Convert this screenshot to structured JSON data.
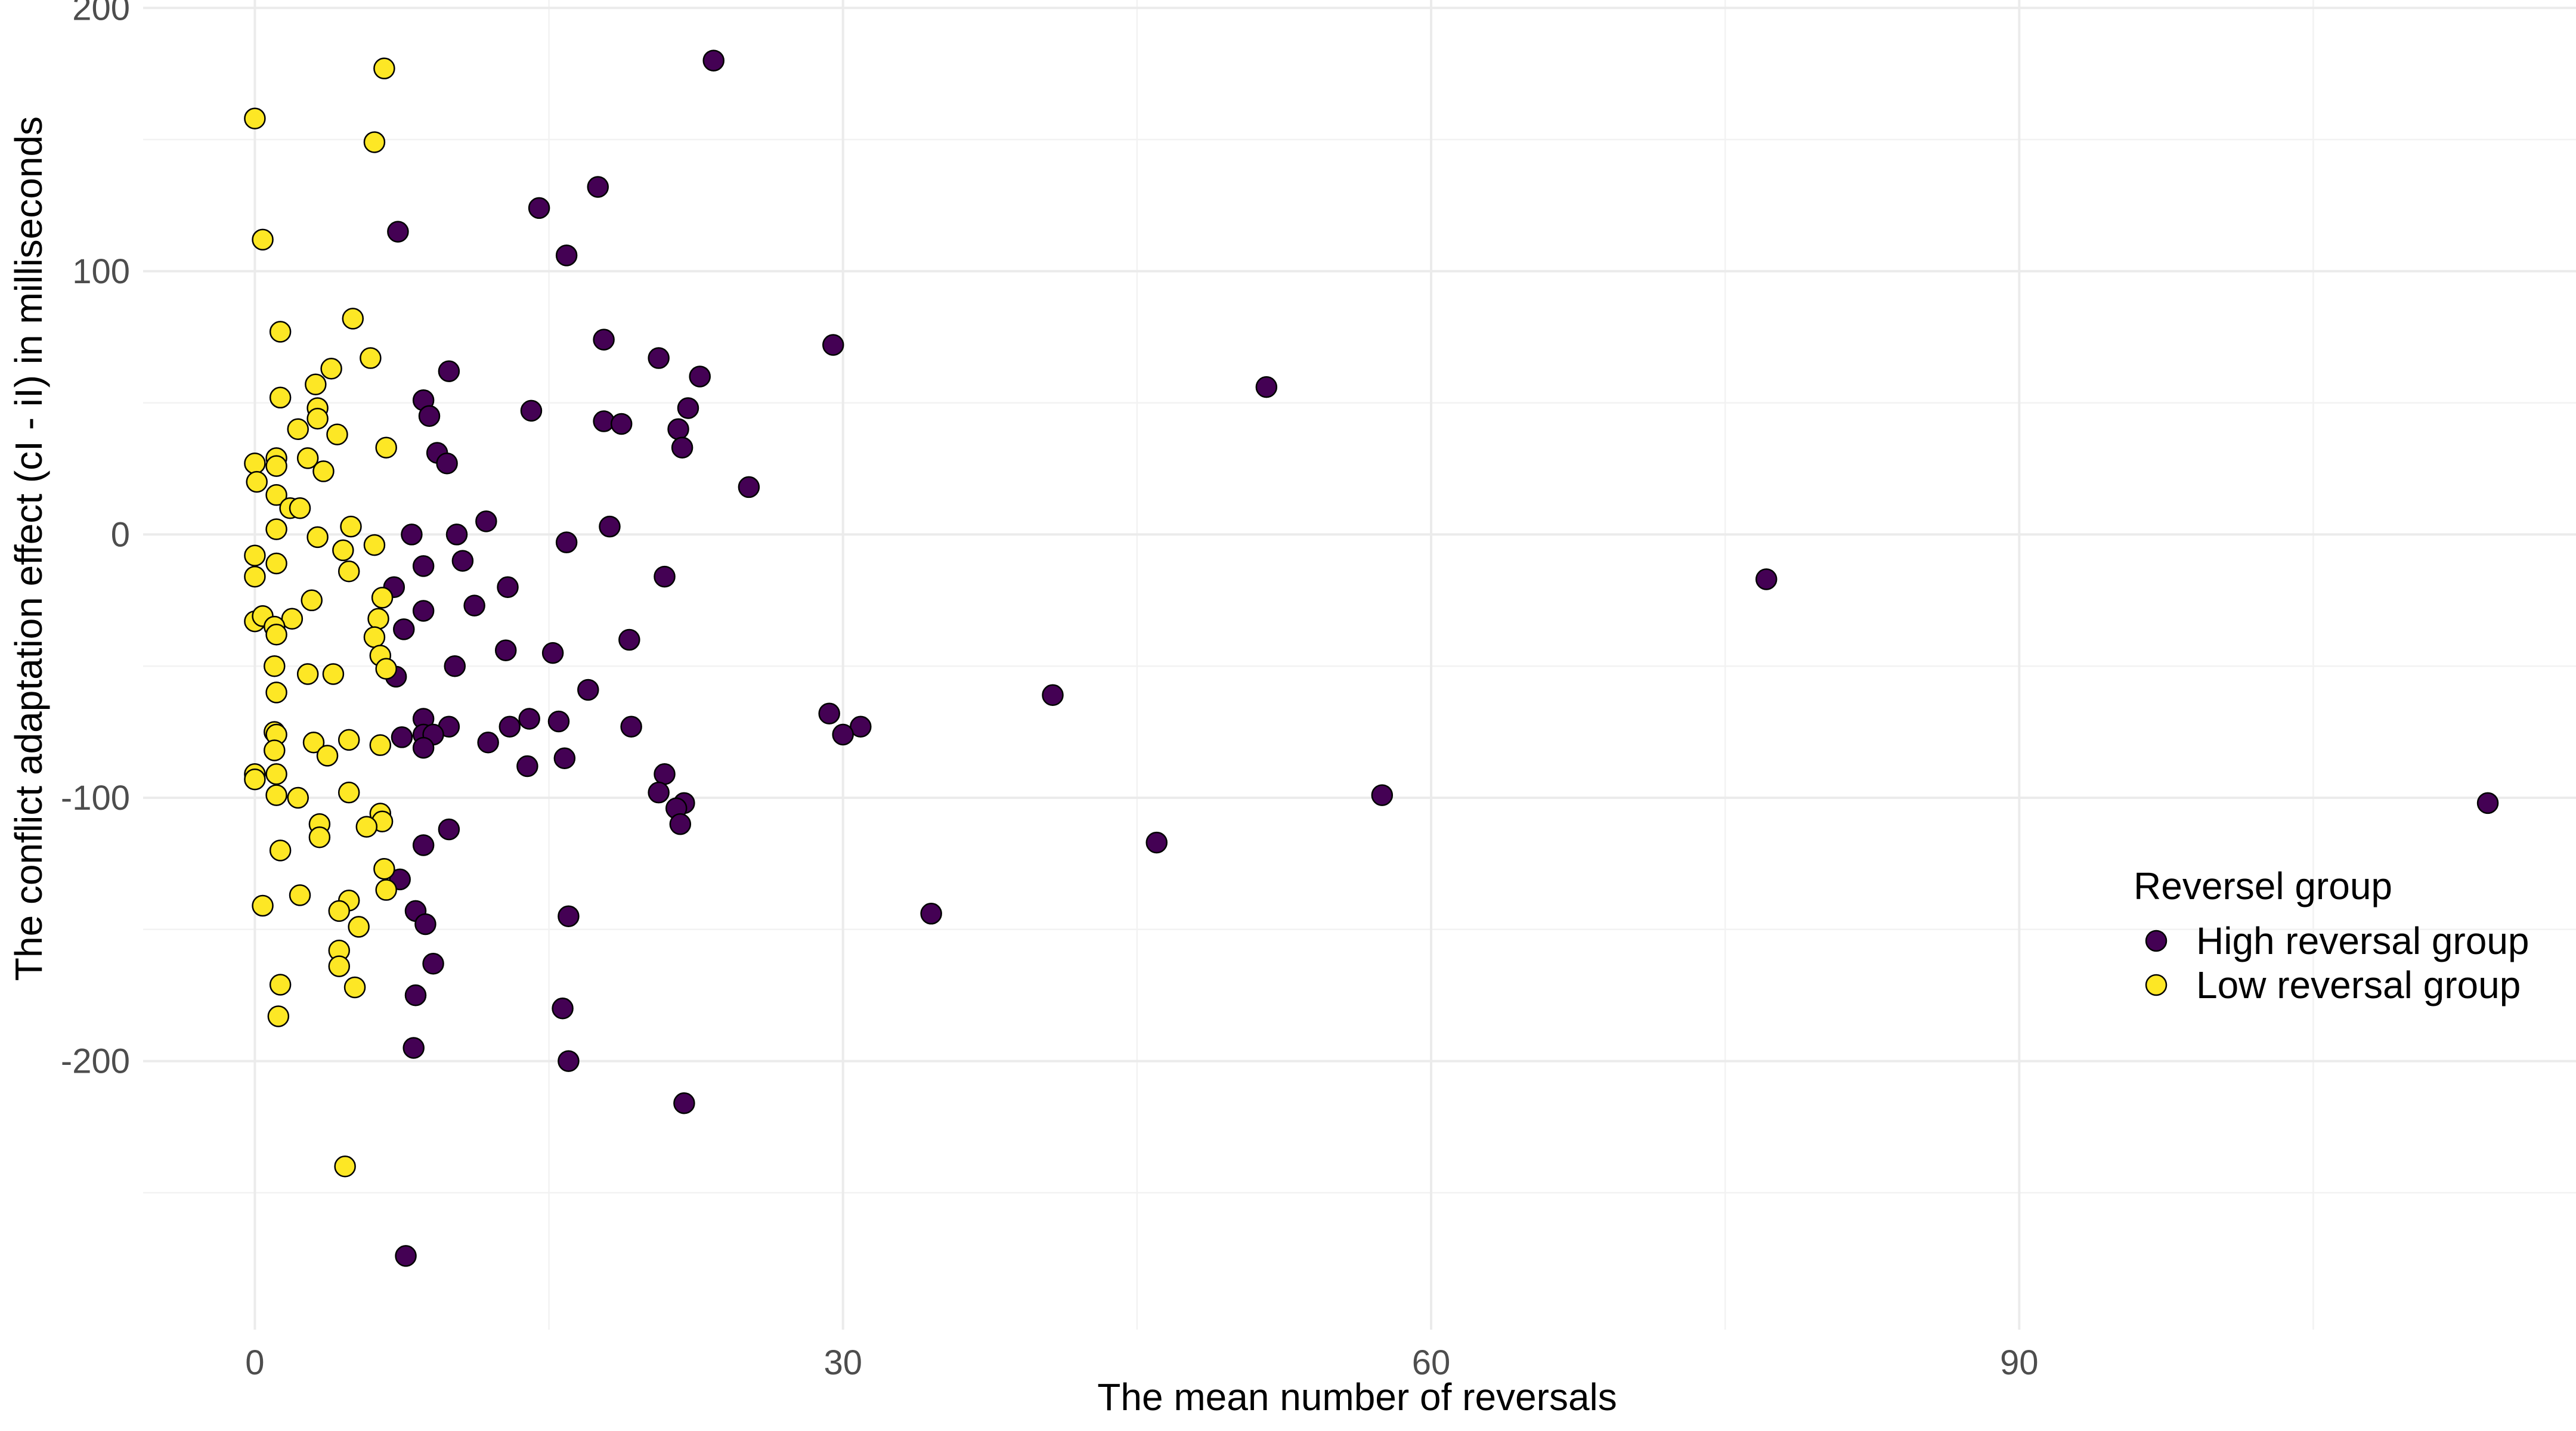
{
  "chart_data": {
    "type": "scatter",
    "xlabel": "The mean number of reversals",
    "ylabel": "The conflict adaptation effect (cI - iI) in milliseconds",
    "xlim": [
      -5.7,
      118.4
    ],
    "ylim": [
      -302,
      203
    ],
    "x_ticks": [
      0,
      30,
      60,
      90
    ],
    "y_ticks": [
      200,
      100,
      0,
      -100,
      -200
    ],
    "x_tick_labels": [
      "0",
      "30",
      "60",
      "90"
    ],
    "y_tick_labels": [
      "200",
      "100",
      "0",
      "-100",
      "-200"
    ],
    "grid": true,
    "legend": {
      "title": "Reversel group",
      "placement": "right",
      "entries": [
        "High reversal group",
        "Low reversal group"
      ]
    },
    "colors": {
      "High reversal group": "#440154",
      "Low reversal group": "#fde725"
    },
    "series": [
      {
        "name": "High reversal group",
        "points": [
          [
            23.4,
            180
          ],
          [
            17.5,
            132
          ],
          [
            14.5,
            124
          ],
          [
            7.3,
            115
          ],
          [
            15.9,
            106
          ],
          [
            29.5,
            72
          ],
          [
            17.8,
            74
          ],
          [
            20.6,
            67
          ],
          [
            22.7,
            60
          ],
          [
            9.9,
            62
          ],
          [
            51.6,
            56
          ],
          [
            8.6,
            51
          ],
          [
            14.1,
            47
          ],
          [
            22.1,
            48
          ],
          [
            8.9,
            45
          ],
          [
            17.8,
            43
          ],
          [
            18.7,
            42
          ],
          [
            21.6,
            40
          ],
          [
            21.8,
            33
          ],
          [
            9.3,
            31
          ],
          [
            9.8,
            27
          ],
          [
            25.2,
            18
          ],
          [
            11.8,
            5
          ],
          [
            18.1,
            3
          ],
          [
            8.0,
            0
          ],
          [
            10.3,
            0
          ],
          [
            15.9,
            -3
          ],
          [
            10.6,
            -10
          ],
          [
            8.6,
            -12
          ],
          [
            20.9,
            -16
          ],
          [
            77.1,
            -17
          ],
          [
            7.1,
            -20
          ],
          [
            12.9,
            -20
          ],
          [
            11.2,
            -27
          ],
          [
            8.6,
            -29
          ],
          [
            7.6,
            -36
          ],
          [
            19.1,
            -40
          ],
          [
            12.8,
            -44
          ],
          [
            15.2,
            -45
          ],
          [
            10.2,
            -50
          ],
          [
            7.2,
            -54
          ],
          [
            17.0,
            -59
          ],
          [
            40.7,
            -61
          ],
          [
            29.3,
            -68
          ],
          [
            14.0,
            -70
          ],
          [
            8.6,
            -70
          ],
          [
            15.5,
            -71
          ],
          [
            19.2,
            -73
          ],
          [
            30.9,
            -73
          ],
          [
            9.9,
            -73
          ],
          [
            13.0,
            -73
          ],
          [
            30.0,
            -76
          ],
          [
            8.6,
            -76
          ],
          [
            9.1,
            -76
          ],
          [
            7.5,
            -77
          ],
          [
            11.9,
            -79
          ],
          [
            8.6,
            -81
          ],
          [
            15.8,
            -85
          ],
          [
            13.9,
            -88
          ],
          [
            20.9,
            -91
          ],
          [
            20.6,
            -98
          ],
          [
            57.5,
            -99
          ],
          [
            21.9,
            -102
          ],
          [
            113.9,
            -102
          ],
          [
            21.5,
            -104
          ],
          [
            21.7,
            -110
          ],
          [
            9.9,
            -112
          ],
          [
            46.0,
            -117
          ],
          [
            8.6,
            -118
          ],
          [
            7.4,
            -131
          ],
          [
            8.2,
            -143
          ],
          [
            34.5,
            -144
          ],
          [
            16.0,
            -145
          ],
          [
            8.7,
            -148
          ],
          [
            9.1,
            -163
          ],
          [
            8.2,
            -175
          ],
          [
            15.7,
            -180
          ],
          [
            8.1,
            -195
          ],
          [
            16.0,
            -200
          ],
          [
            21.9,
            -216
          ],
          [
            7.7,
            -274
          ]
        ]
      },
      {
        "name": "Low reversal group",
        "points": [
          [
            6.6,
            177
          ],
          [
            0.0,
            158
          ],
          [
            6.1,
            149
          ],
          [
            0.4,
            112
          ],
          [
            5.0,
            82
          ],
          [
            1.3,
            77
          ],
          [
            5.9,
            67
          ],
          [
            3.9,
            63
          ],
          [
            3.1,
            57
          ],
          [
            1.3,
            52
          ],
          [
            3.2,
            48
          ],
          [
            3.2,
            44
          ],
          [
            2.2,
            40
          ],
          [
            4.2,
            38
          ],
          [
            6.7,
            33
          ],
          [
            1.1,
            29
          ],
          [
            2.7,
            29
          ],
          [
            0.0,
            27
          ],
          [
            1.1,
            26
          ],
          [
            3.5,
            24
          ],
          [
            0.1,
            20
          ],
          [
            1.1,
            15
          ],
          [
            1.8,
            10
          ],
          [
            2.3,
            10
          ],
          [
            4.9,
            3
          ],
          [
            1.1,
            2
          ],
          [
            3.2,
            -1
          ],
          [
            6.1,
            -4
          ],
          [
            4.5,
            -6
          ],
          [
            0.0,
            -8
          ],
          [
            1.1,
            -11
          ],
          [
            4.8,
            -14
          ],
          [
            0.0,
            -16
          ],
          [
            6.5,
            -24
          ],
          [
            2.9,
            -25
          ],
          [
            0.0,
            -33
          ],
          [
            1.9,
            -32
          ],
          [
            0.4,
            -31
          ],
          [
            6.3,
            -32
          ],
          [
            1.0,
            -35
          ],
          [
            1.1,
            -38
          ],
          [
            6.1,
            -39
          ],
          [
            6.4,
            -46
          ],
          [
            1.0,
            -50
          ],
          [
            6.7,
            -51
          ],
          [
            4.0,
            -53
          ],
          [
            2.7,
            -53
          ],
          [
            1.1,
            -60
          ],
          [
            1.0,
            -75
          ],
          [
            1.1,
            -76
          ],
          [
            4.8,
            -78
          ],
          [
            3.0,
            -79
          ],
          [
            6.4,
            -80
          ],
          [
            1.0,
            -82
          ],
          [
            3.7,
            -84
          ],
          [
            0.0,
            -91
          ],
          [
            1.1,
            -91
          ],
          [
            0.0,
            -93
          ],
          [
            4.8,
            -98
          ],
          [
            1.1,
            -99
          ],
          [
            2.2,
            -100
          ],
          [
            6.4,
            -106
          ],
          [
            6.5,
            -109
          ],
          [
            3.3,
            -110
          ],
          [
            5.7,
            -111
          ],
          [
            3.3,
            -115
          ],
          [
            1.3,
            -120
          ],
          [
            6.6,
            -127
          ],
          [
            6.7,
            -135
          ],
          [
            2.3,
            -137
          ],
          [
            4.8,
            -139
          ],
          [
            0.4,
            -141
          ],
          [
            4.3,
            -143
          ],
          [
            5.3,
            -149
          ],
          [
            4.3,
            -158
          ],
          [
            4.3,
            -164
          ],
          [
            1.3,
            -171
          ],
          [
            5.1,
            -172
          ],
          [
            1.2,
            -183
          ],
          [
            4.6,
            -240
          ]
        ]
      }
    ]
  }
}
